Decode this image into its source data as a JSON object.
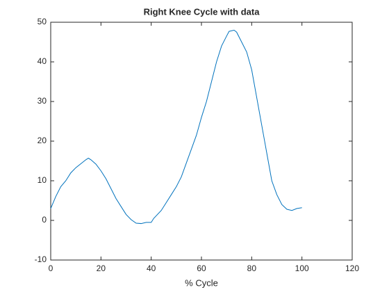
{
  "chart_data": {
    "type": "line",
    "title": "Right Knee Cycle with data",
    "x_label": "% Cycle",
    "x": [
      0,
      2,
      4,
      6,
      8,
      10,
      12,
      14,
      15,
      16,
      18,
      20,
      22,
      24,
      26,
      28,
      30,
      32,
      34,
      36,
      38,
      40,
      41,
      44,
      46,
      48,
      50,
      52,
      54,
      56,
      58,
      60,
      62,
      64,
      66,
      68,
      70,
      71,
      73,
      74,
      76,
      78,
      80,
      82,
      84,
      86,
      88,
      90,
      92,
      94,
      96,
      98,
      100
    ],
    "series": [
      {
        "color": "#0072bd",
        "values": [
          3,
          6,
          8.5,
          10,
          12,
          13.3,
          14.3,
          15.3,
          15.7,
          15.3,
          14.2,
          12.5,
          10.5,
          8,
          5.5,
          3.5,
          1.5,
          0.2,
          -0.7,
          -0.8,
          -0.5,
          -0.5,
          0.5,
          2.5,
          4.5,
          6.5,
          8.5,
          11,
          14.5,
          18,
          21.5,
          26,
          30,
          35,
          40,
          44,
          46.5,
          47.7,
          48,
          47.5,
          45,
          42.5,
          38,
          31,
          24,
          17,
          10,
          6.5,
          4,
          2.8,
          2.5,
          3,
          3.2
        ]
      }
    ],
    "xlim": [
      0,
      120
    ],
    "xticks": [
      0,
      20,
      40,
      60,
      80,
      100,
      120
    ],
    "ylim": [
      -10,
      50
    ],
    "yticks": [
      -10,
      0,
      10,
      20,
      30,
      40,
      50
    ]
  }
}
